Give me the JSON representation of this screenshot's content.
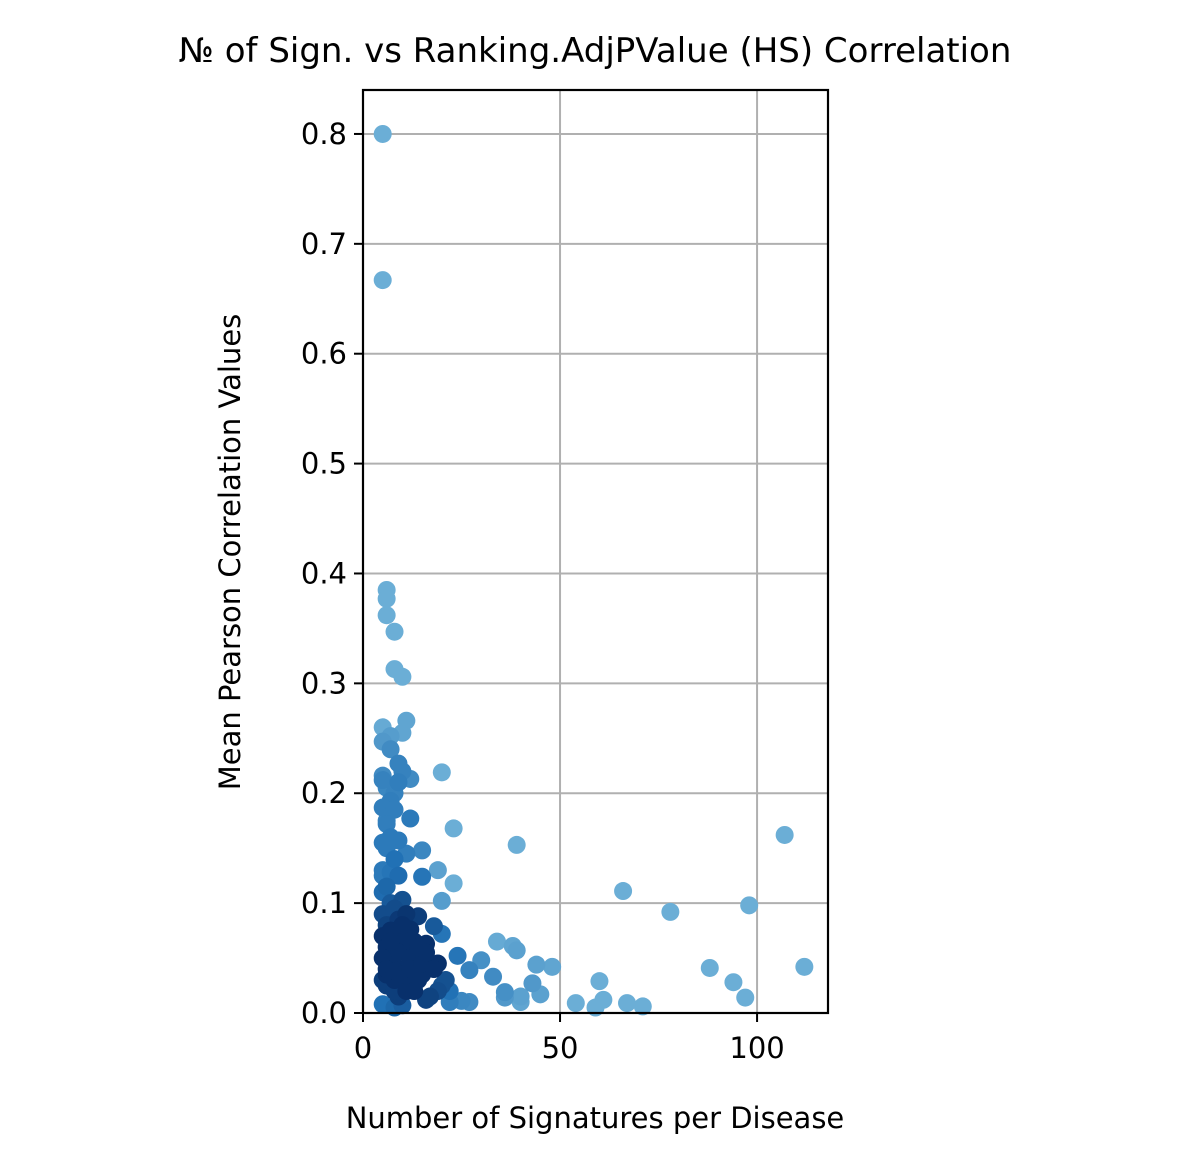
{
  "chart_data": {
    "type": "scatter",
    "title": "№ of Sign. vs Ranking.AdjPValue (HS) Correlation",
    "xlabel": "Number of Signatures per Disease",
    "ylabel": "Mean Pearson Correlation Values",
    "xlim": [
      0,
      118
    ],
    "ylim": [
      0,
      0.84
    ],
    "xticks": [
      0,
      50,
      100
    ],
    "yticks": [
      0.0,
      0.1,
      0.2,
      0.3,
      0.4,
      0.5,
      0.6,
      0.7,
      0.8
    ],
    "xtick_labels": [
      "0",
      "50",
      "100"
    ],
    "ytick_labels": [
      "0.0",
      "0.1",
      "0.2",
      "0.3",
      "0.4",
      "0.5",
      "0.6",
      "0.7",
      "0.8"
    ],
    "grid": true,
    "colors": {
      "light": "#6baed6",
      "mid": "#2171b5",
      "dark": "#08306b",
      "grid": "#b0b0b0",
      "axes": "#000000"
    },
    "points": [
      [
        5,
        0.8
      ],
      [
        5,
        0.667
      ],
      [
        6,
        0.385
      ],
      [
        6,
        0.377
      ],
      [
        6,
        0.362
      ],
      [
        8,
        0.347
      ],
      [
        8,
        0.313
      ],
      [
        10,
        0.306
      ],
      [
        11,
        0.266
      ],
      [
        5,
        0.26
      ],
      [
        10,
        0.255
      ],
      [
        7,
        0.252
      ],
      [
        5,
        0.247
      ],
      [
        7,
        0.24
      ],
      [
        9,
        0.227
      ],
      [
        10,
        0.22
      ],
      [
        20,
        0.219
      ],
      [
        5,
        0.216
      ],
      [
        5,
        0.212
      ],
      [
        9,
        0.21
      ],
      [
        6,
        0.205
      ],
      [
        12,
        0.213
      ],
      [
        8,
        0.2
      ],
      [
        7,
        0.193
      ],
      [
        5,
        0.187
      ],
      [
        8,
        0.185
      ],
      [
        12,
        0.177
      ],
      [
        6,
        0.172
      ],
      [
        23,
        0.168
      ],
      [
        107,
        0.162
      ],
      [
        9,
        0.157
      ],
      [
        5,
        0.155
      ],
      [
        39,
        0.153
      ],
      [
        6,
        0.15
      ],
      [
        15,
        0.148
      ],
      [
        11,
        0.145
      ],
      [
        5,
        0.13
      ],
      [
        19,
        0.13
      ],
      [
        7,
        0.128
      ],
      [
        5,
        0.125
      ],
      [
        15,
        0.124
      ],
      [
        23,
        0.118
      ],
      [
        66,
        0.111
      ],
      [
        20,
        0.102
      ],
      [
        98,
        0.098
      ],
      [
        78,
        0.092
      ],
      [
        14,
        0.088
      ],
      [
        11,
        0.09
      ],
      [
        5,
        0.09
      ],
      [
        9,
        0.085
      ],
      [
        6,
        0.08
      ],
      [
        18,
        0.079
      ],
      [
        12,
        0.076
      ],
      [
        20,
        0.072
      ],
      [
        5,
        0.07
      ],
      [
        8,
        0.068
      ],
      [
        34,
        0.065
      ],
      [
        16,
        0.063
      ],
      [
        38,
        0.061
      ],
      [
        39,
        0.057
      ],
      [
        10,
        0.06
      ],
      [
        24,
        0.052
      ],
      [
        7,
        0.05
      ],
      [
        13,
        0.05
      ],
      [
        30,
        0.048
      ],
      [
        19,
        0.045
      ],
      [
        44,
        0.044
      ],
      [
        48,
        0.042
      ],
      [
        112,
        0.042
      ],
      [
        88,
        0.041
      ],
      [
        27,
        0.039
      ],
      [
        9,
        0.04
      ],
      [
        33,
        0.033
      ],
      [
        6,
        0.035
      ],
      [
        15,
        0.035
      ],
      [
        60,
        0.029
      ],
      [
        94,
        0.028
      ],
      [
        43,
        0.027
      ],
      [
        5,
        0.03
      ],
      [
        12,
        0.028
      ],
      [
        20,
        0.025
      ],
      [
        36,
        0.019
      ],
      [
        45,
        0.017
      ],
      [
        22,
        0.02
      ],
      [
        97,
        0.014
      ],
      [
        40,
        0.015
      ],
      [
        36,
        0.014
      ],
      [
        61,
        0.012
      ],
      [
        16,
        0.012
      ],
      [
        25,
        0.011
      ],
      [
        27,
        0.01
      ],
      [
        40,
        0.01
      ],
      [
        54,
        0.009
      ],
      [
        67,
        0.009
      ],
      [
        5,
        0.008
      ],
      [
        10,
        0.007
      ],
      [
        71,
        0.006
      ],
      [
        59,
        0.005
      ],
      [
        8,
        0.005
      ],
      [
        6,
        0.06
      ],
      [
        7,
        0.075
      ],
      [
        8,
        0.095
      ],
      [
        10,
        0.103
      ],
      [
        7,
        0.045
      ],
      [
        9,
        0.055
      ],
      [
        6,
        0.025
      ],
      [
        11,
        0.02
      ],
      [
        8,
        0.03
      ],
      [
        5,
        0.05
      ],
      [
        6,
        0.04
      ],
      [
        7,
        0.065
      ],
      [
        8,
        0.038
      ],
      [
        9,
        0.015
      ],
      [
        10,
        0.035
      ],
      [
        12,
        0.05
      ],
      [
        13,
        0.065
      ],
      [
        14,
        0.03
      ],
      [
        11,
        0.07
      ],
      [
        6,
        0.085
      ],
      [
        7,
        0.1
      ],
      [
        5,
        0.11
      ],
      [
        6,
        0.115
      ],
      [
        9,
        0.125
      ],
      [
        8,
        0.14
      ],
      [
        7,
        0.16
      ],
      [
        6,
        0.175
      ],
      [
        10,
        0.08
      ],
      [
        12,
        0.04
      ],
      [
        13,
        0.02
      ],
      [
        15,
        0.045
      ],
      [
        17,
        0.015
      ],
      [
        18,
        0.04
      ],
      [
        21,
        0.03
      ],
      [
        22,
        0.01
      ],
      [
        16,
        0.055
      ],
      [
        14,
        0.06
      ],
      [
        19,
        0.02
      ],
      [
        8,
        0.02
      ]
    ]
  }
}
